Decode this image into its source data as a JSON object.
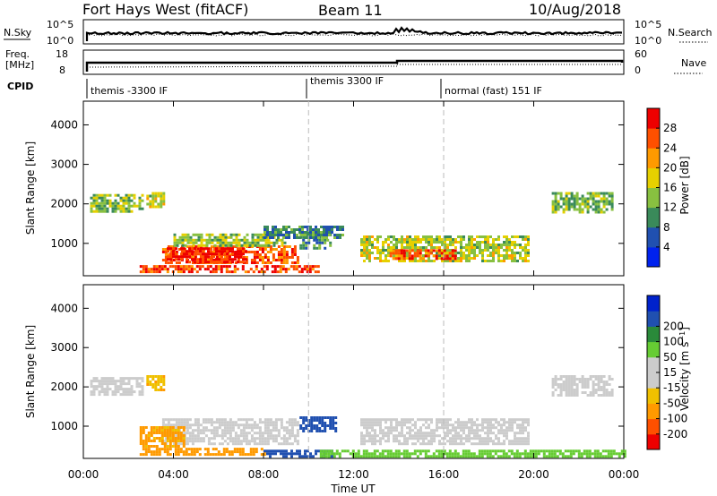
{
  "header": {
    "station": "Fort Hays West (fitACF)",
    "beam": "Beam 11",
    "date": "10/Aug/2018"
  },
  "top_panels": {
    "nsky_label": "N.Sky",
    "nsky_ticks": [
      "10^5",
      "10^0"
    ],
    "nsearch_label": "N.Search",
    "nsearch_ticks": [
      "10^5",
      "10^0"
    ],
    "freq_label_1": "Freq.",
    "freq_label_2": "[MHz]",
    "freq_ticks": [
      "18",
      "8"
    ],
    "nave_label": "Nave",
    "nave_ticks": [
      "60",
      "0"
    ],
    "cpid_label": "CPID",
    "cpid_segments": [
      {
        "label": "themis -3300 IF",
        "start": 0.25,
        "end": 10.0
      },
      {
        "label": "themis 3300 IF",
        "start": 10.0,
        "end": 16.0
      },
      {
        "label": "normal (fast) 151 IF",
        "start": 16.0,
        "end": 24.0
      }
    ]
  },
  "colors": {
    "power": [
      "#0022ee",
      "#2050b0",
      "#3a8a5a",
      "#88c040",
      "#e6d000",
      "#ff9a00",
      "#ff5000",
      "#ee0000"
    ],
    "velocity": [
      "#ee0000",
      "#ff5000",
      "#ff9a00",
      "#f0c000",
      "#cccccc",
      "#cccccc",
      "#66cc33",
      "#2a8a3a",
      "#2050b0",
      "#0022cc"
    ]
  },
  "chart_data": [
    {
      "type": "heatmap",
      "name": "power",
      "xlabel": "Time UT",
      "ylabel": "Slant Range [km]",
      "xlim": [
        0,
        24
      ],
      "ylim": [
        180,
        4600
      ],
      "xtick_labels": [
        "00:00",
        "04:00",
        "08:00",
        "12:00",
        "16:00",
        "20:00",
        "00:00"
      ],
      "xticks": [
        0,
        4,
        8,
        12,
        16,
        20,
        24
      ],
      "yticks": [
        1000,
        2000,
        3000,
        4000
      ],
      "ytick_labels": [
        "1000",
        "2000",
        "3000",
        "4000"
      ],
      "colorbar_label": "Power [dB]",
      "colorbar_ticks": [
        "4",
        "8",
        "12",
        "16",
        "20",
        "24",
        "28"
      ],
      "colorbar_range": [
        0,
        32
      ],
      "regions": [
        {
          "t0": 0.3,
          "t1": 2.6,
          "r0": 1800,
          "r1": 2250,
          "value": 14
        },
        {
          "t0": 2.8,
          "t1": 3.6,
          "r0": 1950,
          "r1": 2300,
          "value": 16
        },
        {
          "t0": 3.5,
          "t1": 9.5,
          "r0": 500,
          "r1": 950,
          "value": 25
        },
        {
          "t0": 3.7,
          "t1": 7.2,
          "r0": 550,
          "r1": 900,
          "value": 29
        },
        {
          "t0": 2.5,
          "t1": 10.5,
          "r0": 280,
          "r1": 450,
          "value": 27
        },
        {
          "t0": 4.0,
          "t1": 9.0,
          "r0": 950,
          "r1": 1250,
          "value": 14
        },
        {
          "t0": 9.6,
          "t1": 11.0,
          "r0": 900,
          "r1": 1250,
          "value": 10
        },
        {
          "t0": 12.3,
          "t1": 19.8,
          "r0": 550,
          "r1": 1200,
          "value": 16
        },
        {
          "t0": 13.6,
          "t1": 16.5,
          "r0": 600,
          "r1": 850,
          "value": 27
        },
        {
          "t0": 8.0,
          "t1": 11.5,
          "r0": 1150,
          "r1": 1450,
          "value": 9
        },
        {
          "t0": 20.8,
          "t1": 23.5,
          "r0": 1800,
          "r1": 2300,
          "value": 13
        }
      ]
    },
    {
      "type": "heatmap",
      "name": "velocity",
      "xlabel": "Time UT",
      "ylabel": "Slant Range [km]",
      "xlim": [
        0,
        24
      ],
      "ylim": [
        180,
        4600
      ],
      "xtick_labels": [
        "00:00",
        "04:00",
        "08:00",
        "12:00",
        "16:00",
        "20:00",
        "00:00"
      ],
      "xticks": [
        0,
        4,
        8,
        12,
        16,
        20,
        24
      ],
      "yticks": [
        1000,
        2000,
        3000,
        4000
      ],
      "ytick_labels": [
        "1000",
        "2000",
        "3000",
        "4000"
      ],
      "colorbar_label": "Velocity [m s^-1]",
      "colorbar_ticks": [
        "-200",
        "-100",
        "-50",
        "-15",
        "15",
        "50",
        "100",
        "200"
      ],
      "regions": [
        {
          "t0": 0.3,
          "t1": 2.6,
          "r0": 1800,
          "r1": 2250,
          "value": 0
        },
        {
          "t0": 2.8,
          "t1": 3.6,
          "r0": 1950,
          "r1": 2300,
          "value": -40
        },
        {
          "t0": 3.5,
          "t1": 9.5,
          "r0": 550,
          "r1": 1200,
          "value": 0
        },
        {
          "t0": 2.5,
          "t1": 4.5,
          "r0": 500,
          "r1": 1000,
          "value": -60
        },
        {
          "t0": 2.5,
          "t1": 8.0,
          "r0": 280,
          "r1": 450,
          "value": -70
        },
        {
          "t0": 8.0,
          "t1": 11.0,
          "r0": 250,
          "r1": 400,
          "value": 120
        },
        {
          "t0": 9.6,
          "t1": 11.2,
          "r0": 900,
          "r1": 1250,
          "value": 150
        },
        {
          "t0": 10.5,
          "t1": 24.0,
          "r0": 200,
          "r1": 400,
          "value": 30
        },
        {
          "t0": 12.3,
          "t1": 19.8,
          "r0": 550,
          "r1": 1200,
          "value": 0
        },
        {
          "t0": 20.8,
          "t1": 23.5,
          "r0": 1800,
          "r1": 2300,
          "value": 0
        }
      ]
    }
  ]
}
